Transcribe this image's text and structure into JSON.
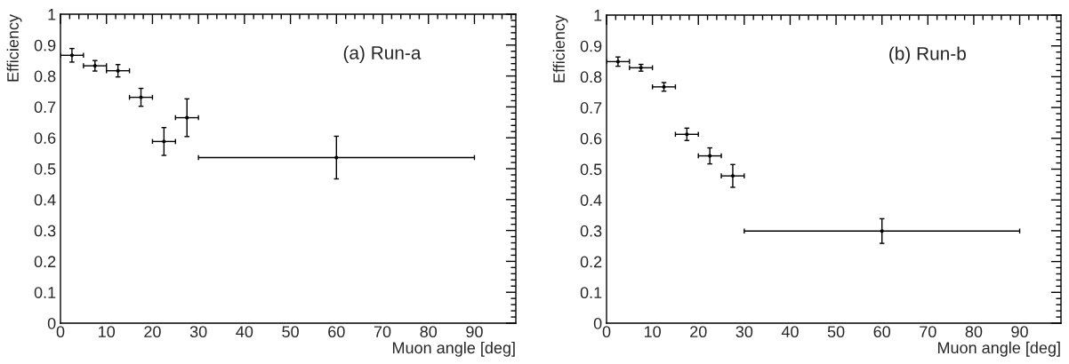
{
  "chart_data": [
    {
      "type": "scatter",
      "xlabel": "Muon angle [deg]",
      "ylabel": "Efficiency",
      "annotations": [
        "(a) Run-a"
      ],
      "x": [
        2.5,
        7.5,
        12.5,
        17.5,
        22.5,
        27.5,
        60
      ],
      "series": [
        {
          "color": "#000000",
          "values": [
            0.867,
            0.833,
            0.817,
            0.731,
            0.588,
            0.665,
            0.536
          ],
          "errors": [
            0.022,
            0.017,
            0.02,
            0.029,
            0.045,
            0.061,
            0.069
          ],
          "xerrors": [
            2.5,
            2.5,
            2.5,
            2.5,
            2.5,
            2.5,
            30
          ]
        }
      ],
      "grid": false,
      "xlim": [
        0,
        99
      ],
      "xticks": [
        0,
        10,
        20,
        30,
        40,
        50,
        60,
        70,
        80,
        90
      ],
      "ylim": [
        0,
        1
      ],
      "yticks": [
        0,
        0.1,
        0.2,
        0.3,
        0.4,
        0.5,
        0.6,
        0.7,
        0.8,
        0.9,
        1
      ]
    },
    {
      "type": "scatter",
      "xlabel": "Muon angle [deg]",
      "ylabel": "Efficiency",
      "annotations": [
        "(b) Run-b"
      ],
      "x": [
        2.5,
        7.5,
        12.5,
        17.5,
        22.5,
        27.5,
        60
      ],
      "series": [
        {
          "color": "#000000",
          "values": [
            0.849,
            0.829,
            0.767,
            0.613,
            0.543,
            0.478,
            0.299
          ],
          "errors": [
            0.015,
            0.011,
            0.014,
            0.02,
            0.026,
            0.037,
            0.04
          ],
          "xerrors": [
            2.5,
            2.5,
            2.5,
            2.5,
            2.5,
            2.5,
            30
          ]
        }
      ],
      "grid": false,
      "xlim": [
        0,
        99
      ],
      "xticks": [
        0,
        10,
        20,
        30,
        40,
        50,
        60,
        70,
        80,
        90
      ],
      "ylim": [
        0,
        1
      ],
      "yticks": [
        0,
        0.1,
        0.2,
        0.3,
        0.4,
        0.5,
        0.6,
        0.7,
        0.8,
        0.9,
        1
      ]
    }
  ]
}
